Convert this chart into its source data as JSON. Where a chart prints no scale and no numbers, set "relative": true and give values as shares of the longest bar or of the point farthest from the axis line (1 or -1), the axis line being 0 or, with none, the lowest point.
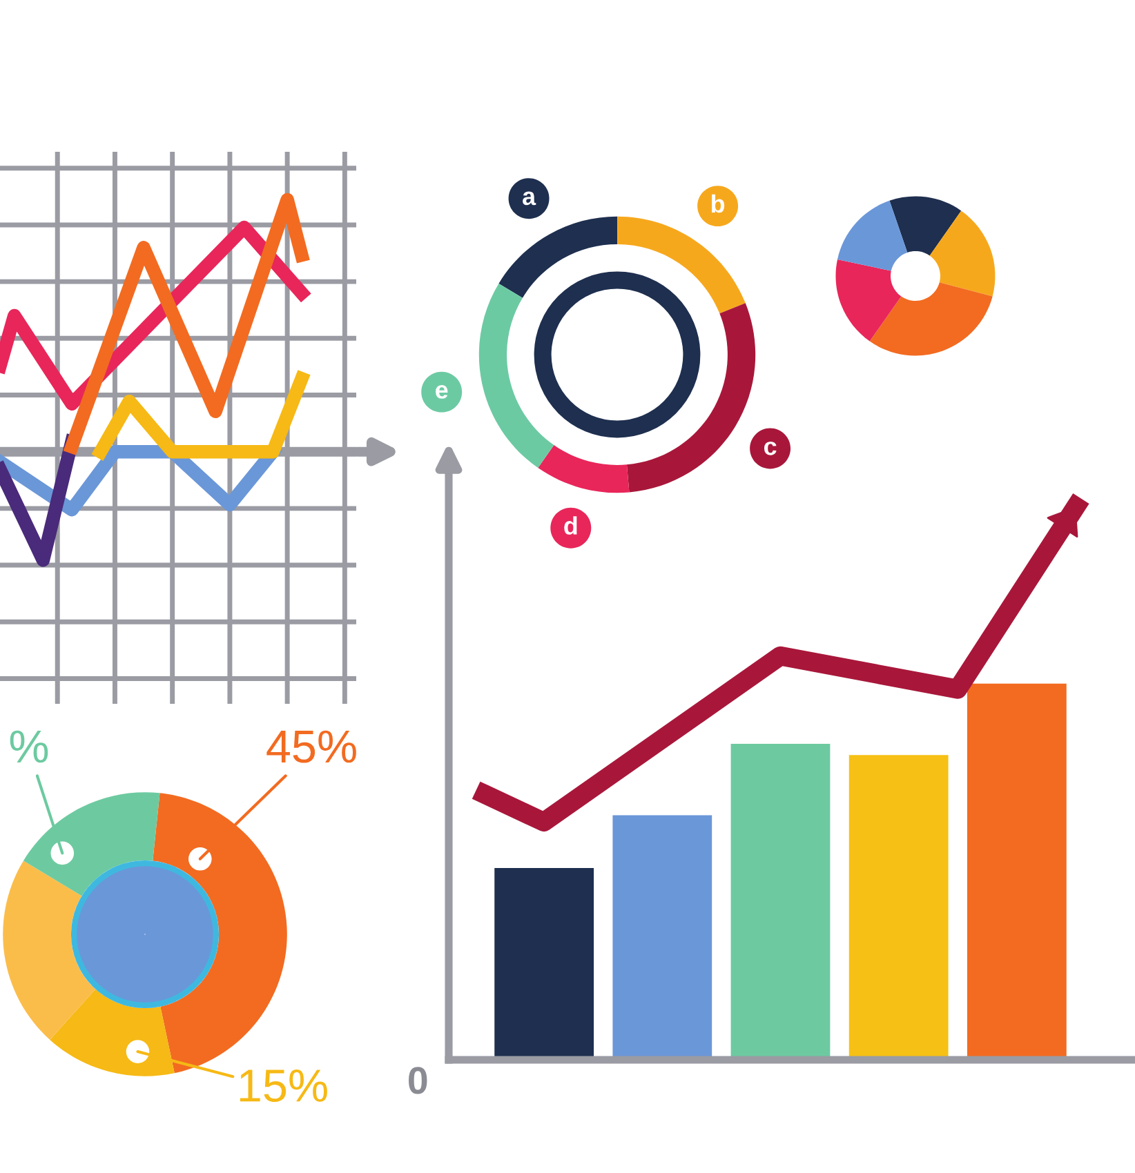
{
  "chart_data": [
    {
      "type": "line",
      "relative": true,
      "grid": true,
      "tick_labels": false,
      "categories": [
        null,
        null,
        null,
        null,
        null,
        null,
        null,
        null,
        null,
        null,
        null,
        null,
        null,
        null,
        null,
        null,
        null,
        null,
        null,
        null,
        null,
        null
      ],
      "series": [
        {
          "color": "#6a97d8",
          "values": [
            -0.04,
            null,
            null,
            null,
            null,
            -0.23,
            null,
            null,
            0,
            null,
            null,
            null,
            0,
            null,
            null,
            null,
            -0.21,
            null,
            null,
            0,
            null,
            null
          ]
        },
        {
          "color": "#f6b915",
          "values": [
            null,
            null,
            null,
            null,
            null,
            null,
            null,
            0,
            null,
            0.2,
            null,
            null,
            0,
            null,
            null,
            null,
            null,
            null,
            null,
            0,
            null,
            0.29
          ]
        },
        {
          "color": "#4a2a7a",
          "values": [
            -0.07,
            null,
            null,
            -0.43,
            null,
            0.04,
            null,
            null,
            null,
            null,
            null,
            null,
            null,
            null,
            null,
            null,
            null,
            null,
            null,
            null,
            null,
            null
          ]
        },
        {
          "color": "#e8265a",
          "values": [
            0.34,
            0.54,
            null,
            null,
            null,
            0.19,
            null,
            null,
            null,
            null,
            null,
            null,
            null,
            null,
            null,
            null,
            null,
            0.89,
            null,
            null,
            null,
            0.63
          ]
        },
        {
          "color": "#f26b21",
          "values": [
            null,
            null,
            null,
            null,
            null,
            0.02,
            null,
            null,
            null,
            null,
            0.81,
            null,
            null,
            null,
            null,
            0.16,
            null,
            null,
            null,
            null,
            1.0,
            0.78
          ]
        }
      ]
    },
    {
      "type": "donut",
      "categories": [
        "a",
        "b",
        "c",
        "d",
        "e"
      ],
      "values": [
        16.4,
        18.9,
        29.7,
        11.1,
        23.9
      ],
      "colors": [
        "#1e2f4f",
        "#f6a81d",
        "#a8173a",
        "#e8265a",
        "#6ccaa3"
      ]
    },
    {
      "type": "donut",
      "categories": [
        null,
        null,
        null,
        null,
        null
      ],
      "values": [
        15,
        19.4,
        30.6,
        18.6,
        16.4
      ],
      "colors": [
        "#1e2f4f",
        "#f6a81d",
        "#f26b21",
        "#e8265a",
        "#6a97d8"
      ]
    },
    {
      "type": "donut",
      "categories": [
        null,
        null,
        null,
        null
      ],
      "values": [
        45,
        15,
        22,
        18
      ],
      "value_labels": [
        "45%",
        "15%",
        null,
        "%"
      ],
      "colors": [
        "#f26b21",
        "#f6b915",
        "#fbbd4a",
        "#6dcaa0"
      ]
    },
    {
      "type": "bar",
      "relative": true,
      "categories": [
        null,
        null,
        null,
        null,
        null
      ],
      "annotations": [
        "0"
      ],
      "colors": [
        "#1e2f4f",
        "#6a97d8",
        "#6dcaa0",
        "#f6c015",
        "#f26b21"
      ],
      "values": [
        0.51,
        0.65,
        0.84,
        0.81,
        1.0
      ]
    },
    {
      "type": "line",
      "relative": true,
      "categories": [
        null,
        null,
        null,
        null,
        null,
        null,
        null,
        null,
        null,
        null,
        null
      ],
      "series": [
        {
          "color": "#a8173a",
          "values": [
            0.48,
            0.43,
            null,
            null,
            null,
            0.73,
            null,
            null,
            0.67,
            null,
            1.0
          ]
        }
      ]
    }
  ]
}
